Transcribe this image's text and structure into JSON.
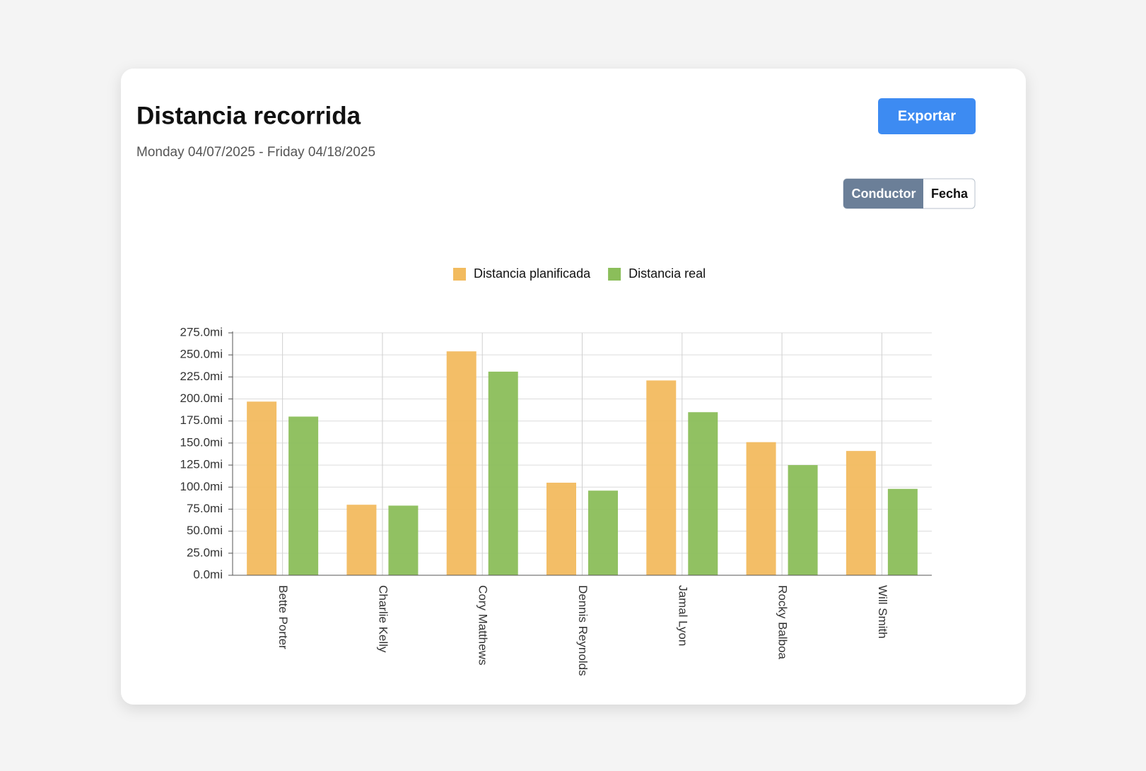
{
  "header": {
    "title": "Distancia recorrida",
    "subtitle": "Monday 04/07/2025 - Friday 04/18/2025",
    "export_button": "Exportar",
    "toggle": [
      "Conductor",
      "Fecha"
    ]
  },
  "chart_data": {
    "type": "bar",
    "categories": [
      "Bette Porter",
      "Charlie Kelly",
      "Cory Matthews",
      "Dennis Reynolds",
      "Jamal Lyon",
      "Rocky Balboa",
      "Will Smith"
    ],
    "series": [
      {
        "name": "Distancia planificada",
        "color": "#f2bb5f",
        "values": [
          197,
          80,
          254,
          105,
          221,
          151,
          141
        ]
      },
      {
        "name": "Distancia real",
        "color": "#8bbe5a",
        "values": [
          180,
          79,
          231,
          96,
          185,
          125,
          98
        ]
      }
    ],
    "ylim": [
      0,
      275
    ],
    "yticks": [
      {
        "value": 0,
        "label": "0.0mi"
      },
      {
        "value": 25,
        "label": "25.0mi"
      },
      {
        "value": 50,
        "label": "50.0mi"
      },
      {
        "value": 75,
        "label": "75.0mi"
      },
      {
        "value": 100,
        "label": "100.0mi"
      },
      {
        "value": 125,
        "label": "125.0mi"
      },
      {
        "value": 150,
        "label": "150.0mi"
      },
      {
        "value": 175,
        "label": "175.0mi"
      },
      {
        "value": 200,
        "label": "200.0mi"
      },
      {
        "value": 225,
        "label": "225.0mi"
      },
      {
        "value": 250,
        "label": "250.0mi"
      },
      {
        "value": 275,
        "label": "275.0mi"
      }
    ],
    "grid": true,
    "legend": "top"
  }
}
